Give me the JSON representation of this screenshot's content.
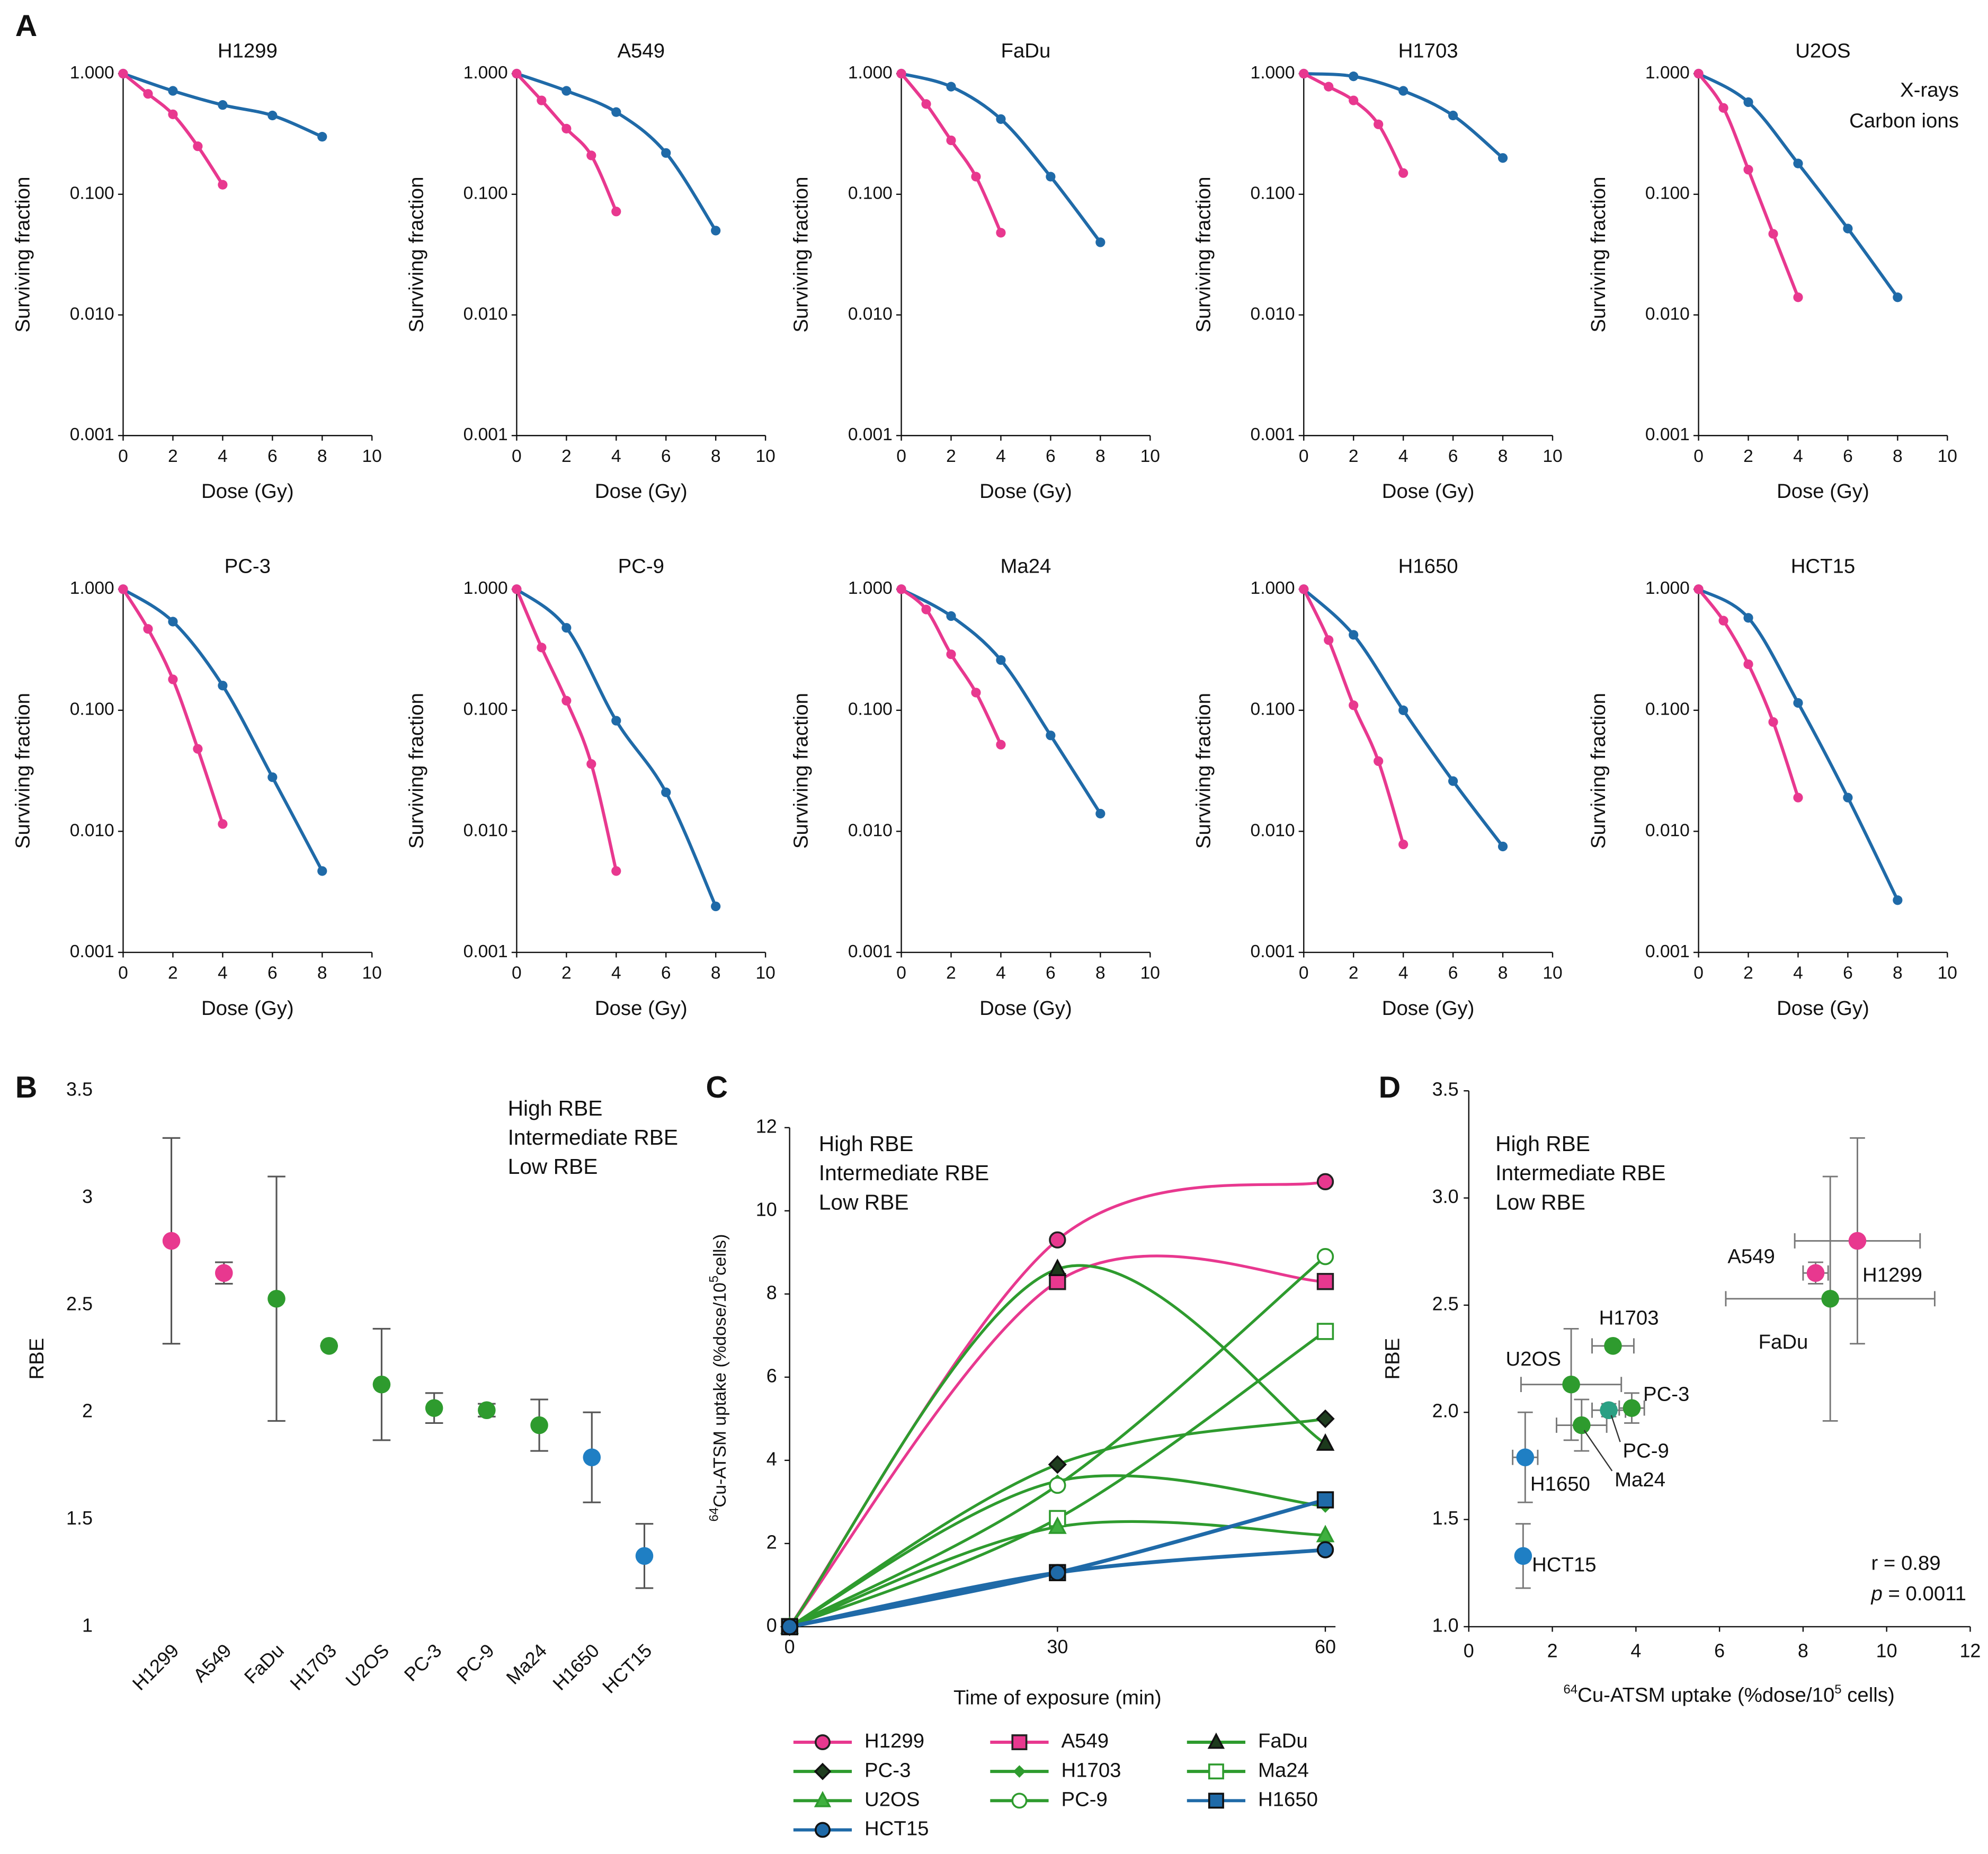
{
  "chart_data": [
    {
      "type": "line",
      "panel": "A",
      "title": "H1299",
      "xlabel": "Dose (Gy)",
      "ylabel": "Surviving fraction",
      "log_y": true,
      "xlim": [
        0,
        10
      ],
      "xticks": [
        0,
        2,
        4,
        6,
        8,
        10
      ],
      "ylim": [
        0.001,
        1
      ],
      "yticks": [
        {
          "value": 0.001,
          "label": "0.001"
        },
        {
          "value": 0.01,
          "label": "0.010"
        },
        {
          "value": 0.1,
          "label": "0.100"
        },
        {
          "value": 1,
          "label": "1.000"
        }
      ],
      "series": [
        {
          "color": "#1f6aa8",
          "x": [
            0,
            2,
            4,
            6,
            8
          ],
          "values": [
            1,
            0.72,
            0.55,
            0.45,
            0.3
          ]
        },
        {
          "color": "#e8388f",
          "x": [
            0,
            1,
            2,
            3,
            4
          ],
          "values": [
            1,
            0.68,
            0.46,
            0.25,
            0.12
          ]
        }
      ]
    },
    {
      "type": "line",
      "title": "A549",
      "xlabel": "Dose (Gy)",
      "ylabel": "Surviving fraction",
      "log_y": true,
      "xlim": [
        0,
        10
      ],
      "xticks": [
        0,
        2,
        4,
        6,
        8,
        10
      ],
      "ylim": [
        0.001,
        1
      ],
      "yticks": [
        {
          "value": 0.001,
          "label": "0.001"
        },
        {
          "value": 0.01,
          "label": "0.010"
        },
        {
          "value": 0.1,
          "label": "0.100"
        },
        {
          "value": 1,
          "label": "1.000"
        }
      ],
      "series": [
        {
          "color": "#1f6aa8",
          "x": [
            0,
            2,
            4,
            6,
            8
          ],
          "values": [
            1,
            0.72,
            0.48,
            0.22,
            0.05
          ]
        },
        {
          "color": "#e8388f",
          "x": [
            0,
            1,
            2,
            3,
            4
          ],
          "values": [
            1,
            0.6,
            0.35,
            0.21,
            0.072
          ]
        }
      ]
    },
    {
      "type": "line",
      "title": "FaDu",
      "xlabel": "Dose (Gy)",
      "ylabel": "Surviving fraction",
      "log_y": true,
      "xlim": [
        0,
        10
      ],
      "xticks": [
        0,
        2,
        4,
        6,
        8,
        10
      ],
      "ylim": [
        0.001,
        1
      ],
      "yticks": [
        {
          "value": 0.001,
          "label": "0.001"
        },
        {
          "value": 0.01,
          "label": "0.010"
        },
        {
          "value": 0.1,
          "label": "0.100"
        },
        {
          "value": 1,
          "label": "1.000"
        }
      ],
      "series": [
        {
          "color": "#1f6aa8",
          "x": [
            0,
            2,
            4,
            6,
            8
          ],
          "values": [
            1,
            0.78,
            0.42,
            0.14,
            0.04
          ]
        },
        {
          "color": "#e8388f",
          "x": [
            0,
            1,
            2,
            3,
            4
          ],
          "values": [
            1,
            0.56,
            0.28,
            0.14,
            0.048
          ]
        }
      ]
    },
    {
      "type": "line",
      "title": "H1703",
      "xlabel": "Dose (Gy)",
      "ylabel": "Surviving fraction",
      "log_y": true,
      "xlim": [
        0,
        10
      ],
      "xticks": [
        0,
        2,
        4,
        6,
        8,
        10
      ],
      "ylim": [
        0.001,
        1
      ],
      "yticks": [
        {
          "value": 0.001,
          "label": "0.001"
        },
        {
          "value": 0.01,
          "label": "0.010"
        },
        {
          "value": 0.1,
          "label": "0.100"
        },
        {
          "value": 1,
          "label": "1.000"
        }
      ],
      "series": [
        {
          "color": "#1f6aa8",
          "x": [
            0,
            2,
            4,
            6,
            8
          ],
          "values": [
            1,
            0.95,
            0.72,
            0.45,
            0.2
          ]
        },
        {
          "color": "#e8388f",
          "x": [
            0,
            1,
            2,
            3,
            4
          ],
          "values": [
            1,
            0.78,
            0.6,
            0.38,
            0.15
          ]
        }
      ]
    },
    {
      "type": "line",
      "title": "U2OS",
      "xlabel": "Dose (Gy)",
      "ylabel": "Surviving fraction",
      "log_y": true,
      "xlim": [
        0,
        10
      ],
      "xticks": [
        0,
        2,
        4,
        6,
        8,
        10
      ],
      "ylim": [
        0.001,
        1
      ],
      "yticks": [
        {
          "value": 0.001,
          "label": "0.001"
        },
        {
          "value": 0.01,
          "label": "0.010"
        },
        {
          "value": 0.1,
          "label": "0.100"
        },
        {
          "value": 1,
          "label": "1.000"
        }
      ],
      "series": [
        {
          "name": "X-rays",
          "color": "#1f6aa8",
          "x": [
            0,
            2,
            4,
            6,
            8
          ],
          "values": [
            1,
            0.58,
            0.18,
            0.052,
            0.014
          ]
        },
        {
          "name": "Carbon ions",
          "color": "#e8388f",
          "x": [
            0,
            1,
            2,
            3,
            4
          ],
          "values": [
            1,
            0.52,
            0.16,
            0.047,
            0.014
          ]
        }
      ]
    },
    {
      "type": "line",
      "title": "PC-3",
      "xlabel": "Dose (Gy)",
      "ylabel": "Surviving fraction",
      "log_y": true,
      "xlim": [
        0,
        10
      ],
      "xticks": [
        0,
        2,
        4,
        6,
        8,
        10
      ],
      "ylim": [
        0.001,
        1
      ],
      "yticks": [
        {
          "value": 0.001,
          "label": "0.001"
        },
        {
          "value": 0.01,
          "label": "0.010"
        },
        {
          "value": 0.1,
          "label": "0.100"
        },
        {
          "value": 1,
          "label": "1.000"
        }
      ],
      "series": [
        {
          "color": "#1f6aa8",
          "x": [
            0,
            2,
            4,
            6,
            8
          ],
          "values": [
            1,
            0.54,
            0.16,
            0.028,
            0.0047
          ]
        },
        {
          "color": "#e8388f",
          "x": [
            0,
            1,
            2,
            3,
            4
          ],
          "values": [
            1,
            0.47,
            0.18,
            0.048,
            0.0115
          ]
        }
      ]
    },
    {
      "type": "line",
      "title": "PC-9",
      "xlabel": "Dose (Gy)",
      "ylabel": "Surviving fraction",
      "log_y": true,
      "xlim": [
        0,
        10
      ],
      "xticks": [
        0,
        2,
        4,
        6,
        8,
        10
      ],
      "ylim": [
        0.001,
        1
      ],
      "yticks": [
        {
          "value": 0.001,
          "label": "0.001"
        },
        {
          "value": 0.01,
          "label": "0.010"
        },
        {
          "value": 0.1,
          "label": "0.100"
        },
        {
          "value": 1,
          "label": "1.000"
        }
      ],
      "series": [
        {
          "color": "#1f6aa8",
          "x": [
            0,
            2,
            4,
            6,
            8
          ],
          "values": [
            1,
            0.48,
            0.082,
            0.021,
            0.0024
          ]
        },
        {
          "color": "#e8388f",
          "x": [
            0,
            1,
            2,
            3,
            4
          ],
          "values": [
            1,
            0.33,
            0.12,
            0.036,
            0.0047
          ]
        }
      ]
    },
    {
      "type": "line",
      "title": "Ma24",
      "xlabel": "Dose (Gy)",
      "ylabel": "Surviving fraction",
      "log_y": true,
      "xlim": [
        0,
        10
      ],
      "xticks": [
        0,
        2,
        4,
        6,
        8,
        10
      ],
      "ylim": [
        0.001,
        1
      ],
      "yticks": [
        {
          "value": 0.001,
          "label": "0.001"
        },
        {
          "value": 0.01,
          "label": "0.010"
        },
        {
          "value": 0.1,
          "label": "0.100"
        },
        {
          "value": 1,
          "label": "1.000"
        }
      ],
      "series": [
        {
          "color": "#1f6aa8",
          "x": [
            0,
            2,
            4,
            6,
            8
          ],
          "values": [
            1,
            0.6,
            0.26,
            0.062,
            0.014
          ]
        },
        {
          "color": "#e8388f",
          "x": [
            0,
            1,
            2,
            3,
            4
          ],
          "values": [
            1,
            0.68,
            0.29,
            0.14,
            0.052
          ]
        }
      ]
    },
    {
      "type": "line",
      "title": "H1650",
      "xlabel": "Dose (Gy)",
      "ylabel": "Surviving fraction",
      "log_y": true,
      "xlim": [
        0,
        10
      ],
      "xticks": [
        0,
        2,
        4,
        6,
        8,
        10
      ],
      "ylim": [
        0.001,
        1
      ],
      "yticks": [
        {
          "value": 0.001,
          "label": "0.001"
        },
        {
          "value": 0.01,
          "label": "0.010"
        },
        {
          "value": 0.1,
          "label": "0.100"
        },
        {
          "value": 1,
          "label": "1.000"
        }
      ],
      "series": [
        {
          "color": "#1f6aa8",
          "x": [
            0,
            2,
            4,
            6,
            8
          ],
          "values": [
            1,
            0.42,
            0.1,
            0.026,
            0.0075
          ]
        },
        {
          "color": "#e8388f",
          "x": [
            0,
            1,
            2,
            3,
            4
          ],
          "values": [
            1,
            0.38,
            0.11,
            0.038,
            0.0078
          ]
        }
      ]
    },
    {
      "type": "line",
      "title": "HCT15",
      "xlabel": "Dose (Gy)",
      "ylabel": "Surviving fraction",
      "log_y": true,
      "xlim": [
        0,
        10
      ],
      "xticks": [
        0,
        2,
        4,
        6,
        8,
        10
      ],
      "ylim": [
        0.001,
        1
      ],
      "yticks": [
        {
          "value": 0.001,
          "label": "0.001"
        },
        {
          "value": 0.01,
          "label": "0.010"
        },
        {
          "value": 0.1,
          "label": "0.100"
        },
        {
          "value": 1,
          "label": "1.000"
        }
      ],
      "series": [
        {
          "color": "#1f6aa8",
          "x": [
            0,
            2,
            4,
            6,
            8
          ],
          "values": [
            1,
            0.58,
            0.115,
            0.019,
            0.0027
          ]
        },
        {
          "color": "#e8388f",
          "x": [
            0,
            1,
            2,
            3,
            4
          ],
          "values": [
            1,
            0.55,
            0.24,
            0.08,
            0.019
          ]
        }
      ]
    },
    {
      "type": "dot",
      "panel": "B",
      "ylabel": "RBE",
      "categories": [
        "H1299",
        "A549",
        "FaDu",
        "H1703",
        "U2OS",
        "PC-3",
        "PC-9",
        "Ma24",
        "H1650",
        "HCT15"
      ],
      "values": [
        2.8,
        2.65,
        2.53,
        2.31,
        2.13,
        2.02,
        2.01,
        1.94,
        1.79,
        1.33
      ],
      "errors": [
        0.48,
        0.05,
        0.57,
        0,
        0.26,
        0.07,
        0.03,
        0.12,
        0.21,
        0.15
      ],
      "colors": [
        "#e8388f",
        "#e8388f",
        "#2e9b2e",
        "#2e9b2e",
        "#2e9b2e",
        "#2e9b2e",
        "#2e9b2e",
        "#2e9b2e",
        "#1f7fc4",
        "#1f7fc4"
      ],
      "ylim": [
        1,
        3.5
      ],
      "yticks": [
        1,
        1.5,
        2,
        2.5,
        3,
        3.5
      ],
      "groups": [
        {
          "name": "High RBE",
          "color": "#e8388f"
        },
        {
          "name": "Intermediate RBE",
          "color": "#2e9b2e"
        },
        {
          "name": "Low RBE",
          "color": "#1f7fc4"
        }
      ]
    },
    {
      "type": "curve",
      "panel": "C",
      "xlabel": "Time of exposure (min)",
      "ylabel": {
        "sup1": "64",
        "text": "Cu-ATSM uptake (%dose/10",
        "sup2": "5",
        "text2": "cells)"
      },
      "x": [
        0,
        30,
        60
      ],
      "xlim": [
        0,
        60
      ],
      "xticks": [
        0,
        30,
        60
      ],
      "ylim": [
        0,
        12
      ],
      "yticks": [
        0,
        2,
        4,
        6,
        8,
        10,
        12
      ],
      "groups": [
        {
          "name": "High RBE",
          "color": "#e8388f"
        },
        {
          "name": "Intermediate RBE",
          "color": "#2e9b2e"
        },
        {
          "name": "Low RBE",
          "color": "#1f6aa8"
        }
      ],
      "series": [
        {
          "name": "H1299",
          "color": "#e8388f",
          "marker": "circle",
          "marker_fill": "#e8388f",
          "marker_edge": "#222",
          "values": [
            0,
            9.3,
            10.7
          ]
        },
        {
          "name": "A549",
          "color": "#e8388f",
          "marker": "square",
          "marker_fill": "#e8388f",
          "marker_edge": "#222",
          "values": [
            0,
            8.3,
            8.3
          ]
        },
        {
          "name": "FaDu",
          "color": "#2e9b2e",
          "marker": "triangle",
          "marker_fill": "#1c3a1c",
          "marker_edge": "#111",
          "values": [
            0,
            8.6,
            4.4
          ]
        },
        {
          "name": "PC-3",
          "color": "#2e9b2e",
          "marker": "diamond",
          "marker_fill": "#1f3d1f",
          "marker_edge": "#111",
          "values": [
            0,
            3.9,
            5.0
          ]
        },
        {
          "name": "H1703",
          "color": "#2e9b2e",
          "marker": "small-diamond",
          "marker_fill": "#2e9b2e",
          "marker_edge": "#2e9b2e",
          "values": [
            0,
            3.5,
            2.9
          ]
        },
        {
          "name": "Ma24",
          "color": "#2e9b2e",
          "marker": "square",
          "marker_fill": "#ffffff",
          "marker_edge": "#2e9b2e",
          "values": [
            0,
            2.6,
            7.1
          ]
        },
        {
          "name": "U2OS",
          "color": "#2e9b2e",
          "marker": "triangle",
          "marker_fill": "#3fb03f",
          "marker_edge": "#2e9b2e",
          "values": [
            0,
            2.4,
            2.2
          ]
        },
        {
          "name": "PC-9",
          "color": "#2e9b2e",
          "marker": "circle",
          "marker_fill": "#ffffff",
          "marker_edge": "#2e9b2e",
          "values": [
            0,
            3.4,
            8.9
          ]
        },
        {
          "name": "H1650",
          "color": "#1f6aa8",
          "marker": "square",
          "marker_fill": "#1f6aa8",
          "marker_edge": "#111",
          "values": [
            0,
            1.3,
            3.05
          ]
        },
        {
          "name": "HCT15",
          "color": "#1f6aa8",
          "marker": "circle",
          "marker_fill": "#1f6aa8",
          "marker_edge": "#111",
          "values": [
            0,
            1.3,
            1.85
          ]
        }
      ]
    },
    {
      "type": "scatter",
      "panel": "D",
      "ylabel": "RBE",
      "xlabel": {
        "sup1": "64",
        "text": "Cu-ATSM uptake (%dose/10",
        "sup2": "5",
        "text2": " cells)"
      },
      "labels": [
        "H1299",
        "A549",
        "FaDu",
        "H1703",
        "U2OS",
        "PC-3",
        "PC-9",
        "Ma24",
        "H1650",
        "HCT15"
      ],
      "x": [
        9.3,
        8.3,
        8.65,
        3.45,
        2.45,
        3.9,
        3.35,
        2.7,
        1.35,
        1.3
      ],
      "values": [
        2.8,
        2.65,
        2.53,
        2.31,
        2.13,
        2.02,
        2.01,
        1.94,
        1.79,
        1.33
      ],
      "x_errors": [
        1.5,
        0.3,
        2.5,
        0.5,
        1.2,
        0.3,
        0.4,
        0.6,
        0.3,
        0
      ],
      "errors": [
        0.48,
        0.05,
        0.57,
        0,
        0.26,
        0.07,
        0.03,
        0.12,
        0.21,
        0.15
      ],
      "colors": [
        "#e8388f",
        "#e8388f",
        "#2e9b2e",
        "#2e9b2e",
        "#2e9b2e",
        "#2e9b2e",
        "#2ba084",
        "#2e9b2e",
        "#1f7fc4",
        "#1f7fc4"
      ],
      "xlim": [
        0,
        12
      ],
      "xticks": [
        0,
        2,
        4,
        6,
        8,
        10,
        12
      ],
      "ylim": [
        1,
        3.5
      ],
      "yticks": [
        {
          "value": 1,
          "label": "1.0"
        },
        {
          "value": 1.5,
          "label": "1.5"
        },
        {
          "value": 2,
          "label": "2.0"
        },
        {
          "value": 2.5,
          "label": "2.5"
        },
        {
          "value": 3,
          "label": "3.0"
        },
        {
          "value": 3.5,
          "label": "3.5"
        }
      ],
      "groups": [
        {
          "name": "High RBE",
          "color": "#e8388f"
        },
        {
          "name": "Intermediate RBE",
          "color": "#2e9b2e"
        },
        {
          "name": "Low RBE",
          "color": "#1f7fc4"
        }
      ],
      "annotations": [
        {
          "text": "r = 0.89"
        },
        {
          "italic": "p",
          "text": " = 0.0011"
        }
      ]
    }
  ]
}
